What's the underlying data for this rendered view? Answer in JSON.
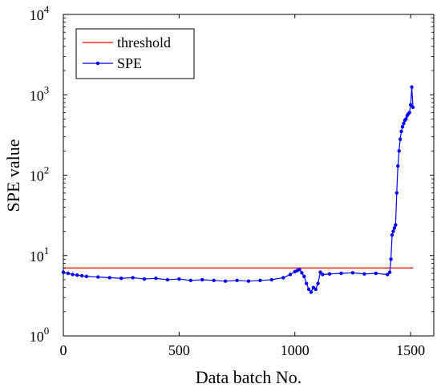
{
  "chart_data": {
    "type": "line",
    "title": "",
    "xlabel": "Data batch No.",
    "ylabel": "SPE value",
    "xlim": [
      0,
      1600
    ],
    "ylim": [
      1,
      10000
    ],
    "yscale": "log",
    "grid": false,
    "legend_position": "top-left",
    "x_ticks": [
      {
        "value": 0,
        "label": "0"
      },
      {
        "value": 500,
        "label": "500"
      },
      {
        "value": 1000,
        "label": "1000"
      },
      {
        "value": 1500,
        "label": "1500"
      }
    ],
    "y_ticks": [
      {
        "value": 1,
        "base": "10",
        "exp": "0"
      },
      {
        "value": 10,
        "base": "10",
        "exp": "1"
      },
      {
        "value": 100,
        "base": "10",
        "exp": "2"
      },
      {
        "value": 1000,
        "base": "10",
        "exp": "3"
      },
      {
        "value": 10000,
        "base": "10",
        "exp": "4"
      }
    ],
    "series": [
      {
        "name": "threshold",
        "color": "#ff0000",
        "marker": "none",
        "x": [
          0,
          1510
        ],
        "y": [
          7.0,
          7.0
        ]
      },
      {
        "name": "SPE",
        "color": "#0000ff",
        "marker": "dot",
        "x": [
          0,
          20,
          40,
          60,
          80,
          100,
          150,
          200,
          250,
          300,
          350,
          400,
          450,
          500,
          550,
          600,
          650,
          700,
          750,
          800,
          850,
          900,
          950,
          980,
          1000,
          1010,
          1020,
          1030,
          1040,
          1050,
          1060,
          1070,
          1080,
          1090,
          1100,
          1110,
          1120,
          1150,
          1200,
          1250,
          1300,
          1350,
          1400,
          1410,
          1415,
          1420,
          1425,
          1430,
          1435,
          1440,
          1445,
          1450,
          1455,
          1460,
          1465,
          1470,
          1475,
          1480,
          1485,
          1490,
          1495,
          1500,
          1505,
          1510
        ],
        "y": [
          6.2,
          6.0,
          5.8,
          5.7,
          5.6,
          5.5,
          5.4,
          5.3,
          5.2,
          5.3,
          5.1,
          5.2,
          5.0,
          5.1,
          4.9,
          5.0,
          4.9,
          4.8,
          4.9,
          4.8,
          4.9,
          5.0,
          5.3,
          5.8,
          6.3,
          6.5,
          6.7,
          6.1,
          5.5,
          4.5,
          3.8,
          3.5,
          4.0,
          3.8,
          4.5,
          6.2,
          5.8,
          5.9,
          6.0,
          6.1,
          5.9,
          6.0,
          5.8,
          6.2,
          9.0,
          18,
          20,
          22,
          24,
          60,
          130,
          200,
          280,
          350,
          400,
          440,
          480,
          500,
          550,
          580,
          600,
          750,
          1250,
          700
        ]
      }
    ]
  }
}
